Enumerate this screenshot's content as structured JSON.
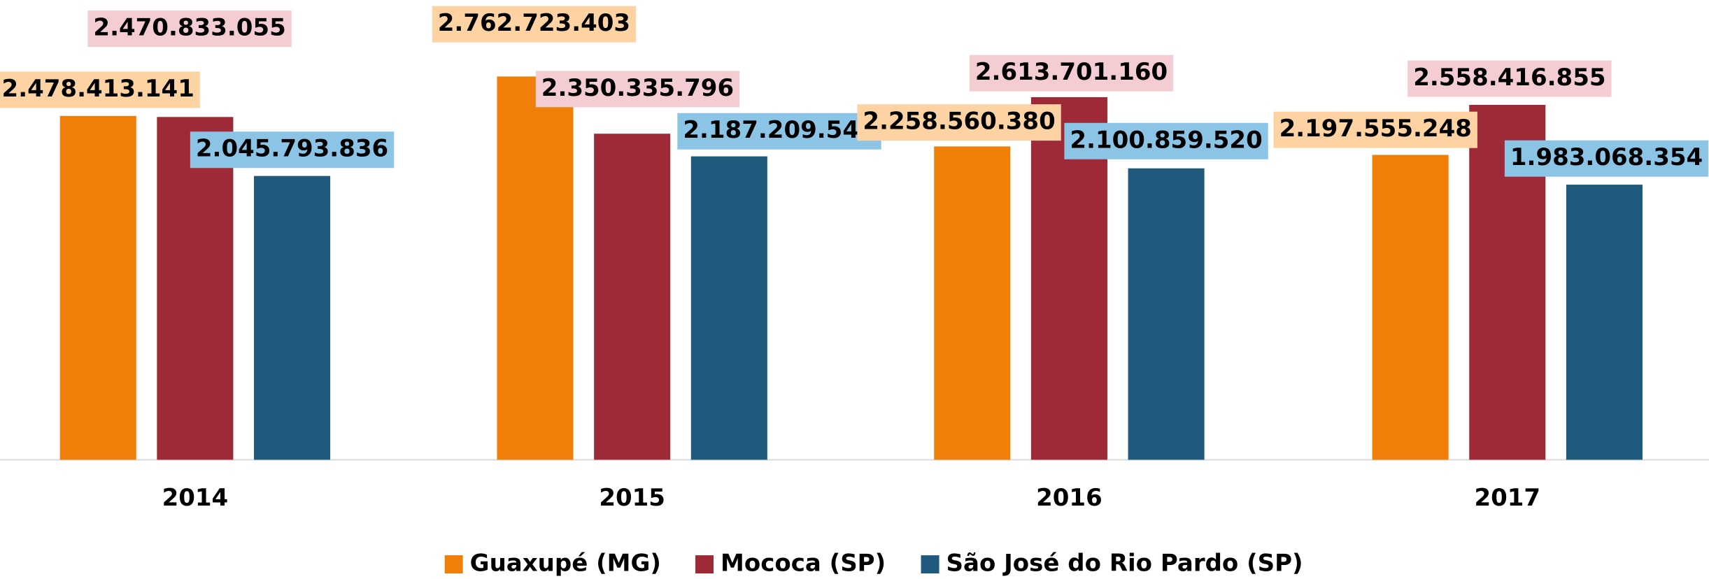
{
  "chart_data": {
    "type": "bar",
    "categories": [
      "2014",
      "2015",
      "2016",
      "2017"
    ],
    "series": [
      {
        "name": "Guaxupé (MG)",
        "color": "#f07f09",
        "label_color": "#fdd3a4",
        "values": [
          2478413141,
          2762723403,
          2258560380,
          2197555248
        ],
        "value_labels": [
          "2.478.413.141",
          "2.762.723.403",
          "2.258.560.380",
          "2.197.555.248"
        ]
      },
      {
        "name": "Mococa (SP)",
        "color": "#9e2a37",
        "label_color": "#f4cdd2",
        "values": [
          2470833055,
          2350335796,
          2613701160,
          2558416855
        ],
        "value_labels": [
          "2.470.833.055",
          "2.350.335.796",
          "2.613.701.160",
          "2.558.416.855"
        ]
      },
      {
        "name": "São José do Rio Pardo (SP)",
        "color": "#1f5a7c",
        "label_color": "#8cc4e6",
        "values": [
          2045793836,
          2187209540,
          2100859520,
          1983068354
        ],
        "value_labels": [
          "2.045.793.836",
          "2.187.209.540",
          "2.100.859.520",
          "1.983.068.354"
        ]
      }
    ],
    "ylim": [
      0,
      3000000000
    ],
    "legend": "bottom"
  }
}
